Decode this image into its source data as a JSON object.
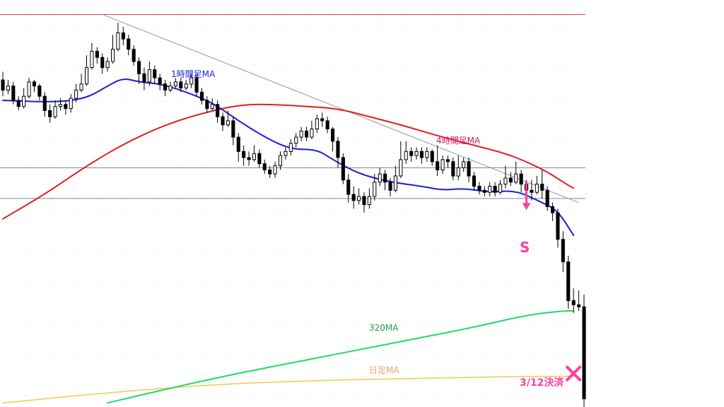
{
  "chart_data": {
    "type": "candlestick",
    "colors": {
      "background": "#ffffff",
      "grid": "#ececec",
      "candle": "#000000",
      "ma_1h": "#1a1fd6",
      "ma_4h": "#e02020",
      "ma_320": "#22d86a",
      "ma_daily": "#f2c94c",
      "trendline": "#8e98a6",
      "top_line": "#e04040",
      "level_line": "#7a8aa8",
      "annotation": "#ff3fa4",
      "label_1h": "#1a1fd6",
      "label_4h": "#d01860",
      "label_320": "#18a24c",
      "label_daily": "#f0a060"
    },
    "candles": [
      [
        98,
        93,
        102,
        90
      ],
      [
        93,
        95,
        98,
        91
      ],
      [
        95,
        88,
        97,
        86
      ],
      [
        88,
        85,
        90,
        83
      ],
      [
        85,
        90,
        94,
        84
      ],
      [
        90,
        97,
        99,
        89
      ],
      [
        97,
        95,
        98,
        92
      ],
      [
        95,
        90,
        96,
        88
      ],
      [
        90,
        83,
        92,
        80
      ],
      [
        83,
        80,
        86,
        77
      ],
      [
        80,
        85,
        88,
        79
      ],
      [
        85,
        86,
        89,
        83
      ],
      [
        86,
        84,
        88,
        81
      ],
      [
        84,
        89,
        91,
        82
      ],
      [
        89,
        93,
        96,
        87
      ],
      [
        93,
        96,
        101,
        92
      ],
      [
        96,
        104,
        110,
        95
      ],
      [
        104,
        112,
        116,
        103
      ],
      [
        112,
        109,
        114,
        106
      ],
      [
        109,
        104,
        111,
        101
      ],
      [
        104,
        107,
        109,
        102
      ],
      [
        107,
        113,
        120,
        106
      ],
      [
        113,
        121,
        126,
        112
      ],
      [
        121,
        118,
        124,
        115
      ],
      [
        118,
        113,
        120,
        110
      ],
      [
        113,
        107,
        115,
        105
      ],
      [
        107,
        101,
        109,
        96
      ],
      [
        101,
        97,
        104,
        93
      ],
      [
        97,
        103,
        107,
        95
      ],
      [
        103,
        99,
        105,
        96
      ],
      [
        99,
        96,
        101,
        93
      ],
      [
        96,
        93,
        98,
        90
      ],
      [
        93,
        95,
        97,
        92
      ],
      [
        95,
        97,
        99,
        94
      ],
      [
        97,
        94,
        99,
        92
      ],
      [
        94,
        96,
        98,
        93
      ],
      [
        96,
        99,
        101,
        94
      ],
      [
        99,
        92,
        101,
        90
      ],
      [
        92,
        88,
        94,
        86
      ],
      [
        88,
        84,
        90,
        82
      ],
      [
        84,
        86,
        89,
        83
      ],
      [
        86,
        80,
        88,
        77
      ],
      [
        80,
        76,
        82,
        73
      ],
      [
        76,
        78,
        83,
        75
      ],
      [
        78,
        70,
        80,
        66
      ],
      [
        70,
        63,
        72,
        58
      ],
      [
        63,
        60,
        66,
        56
      ],
      [
        60,
        59,
        63,
        56
      ],
      [
        59,
        62,
        66,
        58
      ],
      [
        62,
        57,
        64,
        55
      ],
      [
        57,
        54,
        59,
        52
      ],
      [
        54,
        52,
        56,
        50
      ],
      [
        52,
        56,
        58,
        50
      ],
      [
        56,
        61,
        63,
        54
      ],
      [
        61,
        63,
        65,
        59
      ],
      [
        63,
        67,
        69,
        61
      ],
      [
        67,
        70,
        72,
        65
      ],
      [
        70,
        73,
        75,
        68
      ],
      [
        73,
        70,
        75,
        68
      ],
      [
        70,
        74,
        78,
        69
      ],
      [
        74,
        79,
        81,
        72
      ],
      [
        79,
        78,
        82,
        75
      ],
      [
        78,
        74,
        80,
        72
      ],
      [
        74,
        68,
        75,
        63
      ],
      [
        68,
        60,
        70,
        55
      ],
      [
        60,
        49,
        62,
        47
      ],
      [
        49,
        42,
        52,
        38
      ],
      [
        42,
        39,
        46,
        35
      ],
      [
        39,
        41,
        45,
        37
      ],
      [
        41,
        37,
        43,
        33
      ],
      [
        37,
        41,
        45,
        35
      ],
      [
        41,
        48,
        52,
        39
      ],
      [
        48,
        52,
        55,
        46
      ],
      [
        52,
        48,
        54,
        44
      ],
      [
        48,
        44,
        50,
        41
      ],
      [
        44,
        51,
        56,
        43
      ],
      [
        51,
        59,
        68,
        50
      ],
      [
        59,
        63,
        68,
        57
      ],
      [
        63,
        61,
        65,
        58
      ],
      [
        61,
        63,
        65,
        59
      ],
      [
        63,
        60,
        65,
        57
      ],
      [
        60,
        63,
        65,
        58
      ],
      [
        63,
        58,
        64,
        56
      ],
      [
        58,
        54,
        66,
        51
      ],
      [
        54,
        59,
        61,
        52
      ],
      [
        59,
        58,
        61,
        55
      ],
      [
        58,
        51,
        60,
        49
      ],
      [
        51,
        55,
        61,
        49
      ],
      [
        55,
        58,
        60,
        53
      ],
      [
        58,
        51,
        60,
        48
      ],
      [
        51,
        46,
        53,
        44
      ],
      [
        46,
        44,
        48,
        42
      ],
      [
        44,
        43,
        46,
        41
      ],
      [
        43,
        46,
        48,
        41
      ],
      [
        46,
        43,
        48,
        41
      ],
      [
        43,
        47,
        49,
        42
      ],
      [
        47,
        50,
        56,
        45
      ],
      [
        50,
        48,
        53,
        46
      ],
      [
        48,
        52,
        58,
        47
      ],
      [
        52,
        47,
        54,
        43
      ],
      [
        47,
        44,
        49,
        40
      ],
      [
        44,
        43,
        49,
        39
      ],
      [
        43,
        47,
        51,
        42
      ],
      [
        47,
        44,
        54,
        40
      ],
      [
        44,
        36,
        46,
        34
      ],
      [
        36,
        33,
        38,
        29
      ],
      [
        33,
        20,
        35,
        16
      ],
      [
        20,
        9,
        24,
        4
      ],
      [
        9,
        -10,
        12,
        -14
      ],
      [
        -10,
        -12,
        -4,
        -16
      ],
      [
        -12,
        -13,
        -5,
        -15
      ],
      [
        -13,
        -58,
        -7,
        -62
      ]
    ],
    "ma_1h": [
      [
        0,
        88
      ],
      [
        10,
        87
      ],
      [
        16,
        89
      ],
      [
        20,
        95
      ],
      [
        23,
        99
      ],
      [
        26,
        97
      ],
      [
        30,
        96
      ],
      [
        34,
        93
      ],
      [
        40,
        87
      ],
      [
        45,
        78
      ],
      [
        50,
        70
      ],
      [
        55,
        64
      ],
      [
        60,
        64
      ],
      [
        63,
        59
      ],
      [
        68,
        52
      ],
      [
        74,
        48
      ],
      [
        80,
        46
      ],
      [
        84,
        44
      ],
      [
        88,
        45
      ],
      [
        93,
        43
      ],
      [
        98,
        44
      ],
      [
        103,
        38
      ],
      [
        106,
        34
      ],
      [
        109,
        22
      ]
    ],
    "ma_4h": [
      [
        0,
        30
      ],
      [
        8,
        42
      ],
      [
        16,
        56
      ],
      [
        24,
        68
      ],
      [
        32,
        77
      ],
      [
        40,
        83
      ],
      [
        46,
        86
      ],
      [
        52,
        86
      ],
      [
        58,
        85
      ],
      [
        64,
        84
      ],
      [
        70,
        80
      ],
      [
        76,
        76
      ],
      [
        84,
        70
      ],
      [
        90,
        66
      ],
      [
        96,
        62
      ],
      [
        100,
        58
      ],
      [
        104,
        53
      ],
      [
        107,
        48
      ],
      [
        109,
        45
      ]
    ],
    "ma_320": [
      [
        20,
        -60
      ],
      [
        40,
        -48
      ],
      [
        60,
        -38
      ],
      [
        70,
        -33
      ],
      [
        80,
        -28
      ],
      [
        90,
        -23
      ],
      [
        100,
        -17
      ],
      [
        107,
        -15
      ],
      [
        109,
        -15
      ]
    ],
    "ma_daily": [
      [
        0,
        -60
      ],
      [
        20,
        -55
      ],
      [
        40,
        -51
      ],
      [
        60,
        -49
      ],
      [
        80,
        -48
      ],
      [
        100,
        -47
      ],
      [
        109,
        -47
      ]
    ],
    "trendline": [
      [
        19,
        130
      ],
      [
        110,
        38
      ]
    ],
    "top_level": 130,
    "horizontal_levels": [
      55,
      40
    ],
    "labels": {
      "ma_1h": "1時間足MA",
      "ma_4h": "4時間足MA",
      "ma_320": "320MA",
      "ma_daily": "日足MA",
      "sell_marker": "S",
      "settlement": "3/12決済"
    },
    "sell_index": 100,
    "sell_price": 44,
    "settle_index": 109,
    "settle_price": -47,
    "y_range": [
      -62,
      135
    ]
  }
}
